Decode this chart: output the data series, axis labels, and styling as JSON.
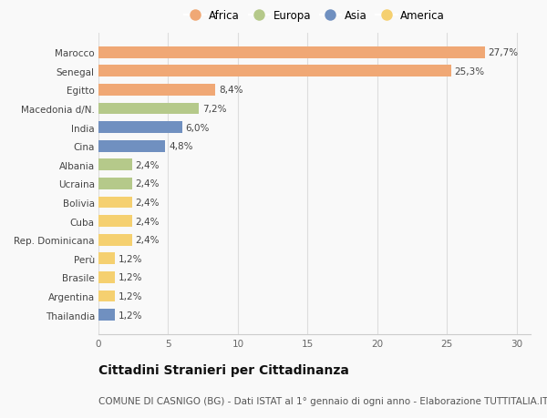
{
  "categories": [
    "Marocco",
    "Senegal",
    "Egitto",
    "Macedonia d/N.",
    "India",
    "Cina",
    "Albania",
    "Ucraina",
    "Bolivia",
    "Cuba",
    "Rep. Dominicana",
    "Perù",
    "Brasile",
    "Argentina",
    "Thailandia"
  ],
  "values": [
    27.7,
    25.3,
    8.4,
    7.2,
    6.0,
    4.8,
    2.4,
    2.4,
    2.4,
    2.4,
    2.4,
    1.2,
    1.2,
    1.2,
    1.2
  ],
  "labels": [
    "27,7%",
    "25,3%",
    "8,4%",
    "7,2%",
    "6,0%",
    "4,8%",
    "2,4%",
    "2,4%",
    "2,4%",
    "2,4%",
    "2,4%",
    "1,2%",
    "1,2%",
    "1,2%",
    "1,2%"
  ],
  "continents": [
    "Africa",
    "Africa",
    "Africa",
    "Europa",
    "Asia",
    "Asia",
    "Europa",
    "Europa",
    "America",
    "America",
    "America",
    "America",
    "America",
    "America",
    "Asia"
  ],
  "colors": {
    "Africa": "#F0A875",
    "Europa": "#B5C98A",
    "Asia": "#7090C0",
    "America": "#F5D070"
  },
  "legend_order": [
    "Africa",
    "Europa",
    "Asia",
    "America"
  ],
  "legend_colors": [
    "#F0A875",
    "#B5C98A",
    "#7090C0",
    "#F5D070"
  ],
  "title": "Cittadini Stranieri per Cittadinanza",
  "subtitle": "COMUNE DI CASNIGO (BG) - Dati ISTAT al 1° gennaio di ogni anno - Elaborazione TUTTITALIA.IT",
  "xlim": [
    0,
    31
  ],
  "xticks": [
    0,
    5,
    10,
    15,
    20,
    25,
    30
  ],
  "background_color": "#f9f9f9",
  "bar_height": 0.62,
  "title_fontsize": 10,
  "subtitle_fontsize": 7.5,
  "label_fontsize": 7.5,
  "tick_fontsize": 7.5,
  "legend_fontsize": 8.5
}
